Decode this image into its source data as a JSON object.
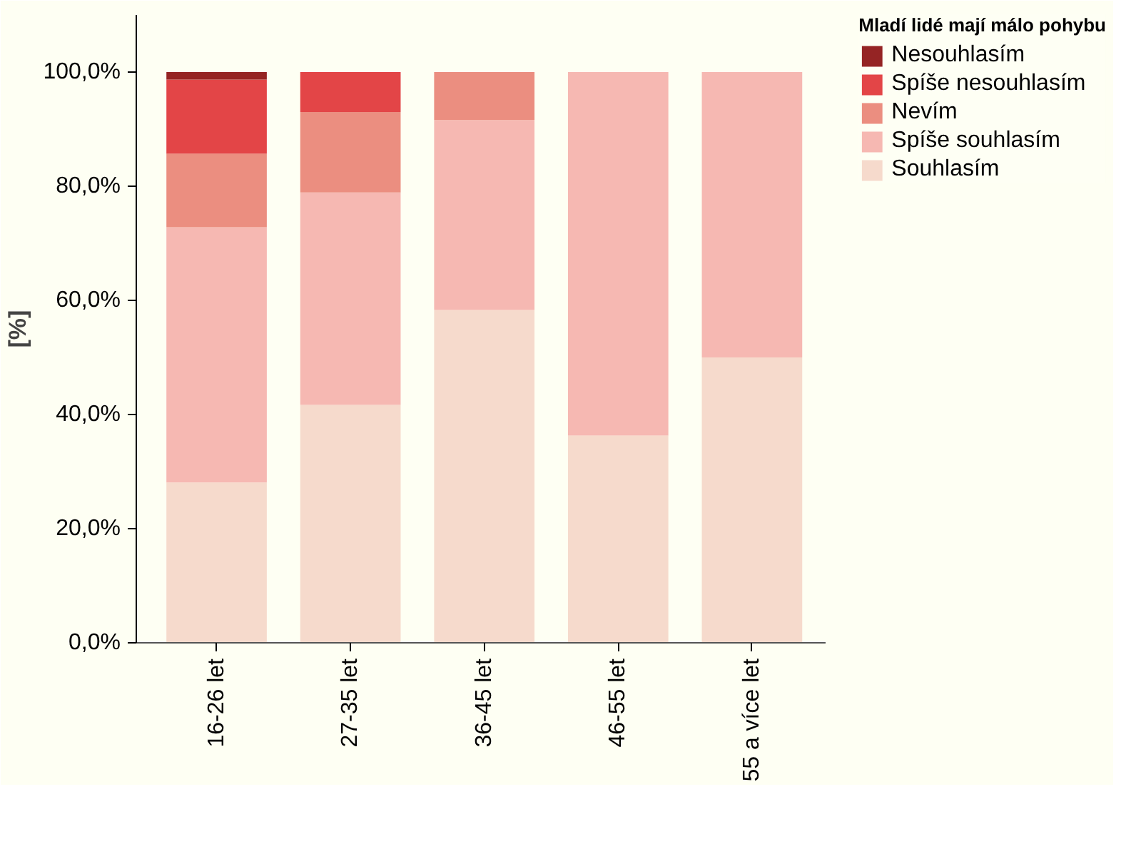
{
  "chart_data": {
    "type": "bar",
    "stacked": true,
    "ylabel": "[%]",
    "legend_title": "Mladí lidé mají málo pohybu",
    "legend": "top right",
    "grid": false,
    "categories": [
      "16-26 let",
      "27-35 let",
      "36-45 let",
      "46-55 let",
      "55 a více let"
    ],
    "ylim": [
      0,
      110
    ],
    "yticks": [
      {
        "value": 0,
        "label": "0,0%"
      },
      {
        "value": 20,
        "label": "20,0%"
      },
      {
        "value": 40,
        "label": "40,0%"
      },
      {
        "value": 60,
        "label": "60,0%"
      },
      {
        "value": 80,
        "label": "80,0%"
      },
      {
        "value": 100,
        "label": "100,0%"
      }
    ],
    "series": [
      {
        "name": "Souhlasím",
        "color": "#f6dacc",
        "values": [
          28.1,
          41.7,
          58.3,
          36.3,
          50.0
        ]
      },
      {
        "name": "Spíše souhlasím",
        "color": "#f6b8b2",
        "values": [
          44.7,
          37.2,
          33.3,
          63.7,
          50.0
        ]
      },
      {
        "name": "Nevím",
        "color": "#eb8e80",
        "values": [
          12.9,
          14.1,
          8.4,
          null,
          null
        ]
      },
      {
        "name": "Spíše nesouhlasím",
        "color": "#e34547",
        "values": [
          13.0,
          7.0,
          null,
          null,
          null
        ]
      },
      {
        "name": "Nesouhlasím",
        "color": "#952424",
        "values": [
          1.3,
          null,
          null,
          null,
          null
        ]
      }
    ]
  }
}
